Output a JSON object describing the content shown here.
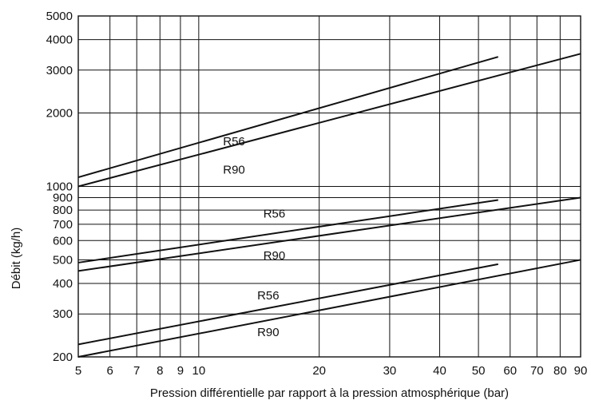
{
  "chart_data": {
    "type": "line",
    "xscale": "log",
    "yscale": "log",
    "xlim": [
      5,
      90
    ],
    "ylim": [
      200,
      5000
    ],
    "grid": true,
    "xlabel": "Pression différentielle par rapport à la pression atmosphérique (bar)",
    "ylabel": "Débit (kg/h)",
    "xticks": [
      5,
      6,
      7,
      8,
      9,
      10,
      20,
      30,
      40,
      50,
      60,
      70,
      80,
      90
    ],
    "xtick_labels": [
      "5",
      "6",
      "7",
      "8",
      "9",
      "10",
      "20",
      "30",
      "40",
      "50",
      "60",
      "70",
      "80",
      "90"
    ],
    "yticks": [
      200,
      300,
      400,
      500,
      600,
      700,
      800,
      900,
      1000,
      2000,
      3000,
      4000,
      5000
    ],
    "ytick_labels": [
      "200",
      "300",
      "400",
      "500",
      "600",
      "700",
      "800",
      "900",
      "1000",
      "2000",
      "3000",
      "4000",
      "5000"
    ],
    "series": [
      {
        "name": "R56",
        "group": "upper",
        "x": [
          5,
          56
        ],
        "y": [
          1090,
          3400
        ],
        "label_at": [
          11.5,
          1530
        ]
      },
      {
        "name": "R90",
        "group": "upper",
        "x": [
          5,
          90
        ],
        "y": [
          1000,
          3500
        ],
        "label_at": [
          11.5,
          1170
        ]
      },
      {
        "name": "R56",
        "group": "middle",
        "x": [
          5,
          56
        ],
        "y": [
          487,
          880
        ],
        "label_at": [
          14.5,
          775
        ]
      },
      {
        "name": "R90",
        "group": "middle",
        "x": [
          5,
          90
        ],
        "y": [
          450,
          900
        ],
        "label_at": [
          14.5,
          520
        ]
      },
      {
        "name": "R56",
        "group": "lower",
        "x": [
          5,
          56
        ],
        "y": [
          225,
          480
        ],
        "label_at": [
          14.0,
          358
        ]
      },
      {
        "name": "R90",
        "group": "lower",
        "x": [
          5,
          90
        ],
        "y": [
          200,
          500
        ],
        "label_at": [
          14.0,
          253
        ]
      }
    ],
    "colors": {
      "grid": "#111111",
      "line": "#111111",
      "text": "#111111",
      "background": "#ffffff"
    }
  }
}
